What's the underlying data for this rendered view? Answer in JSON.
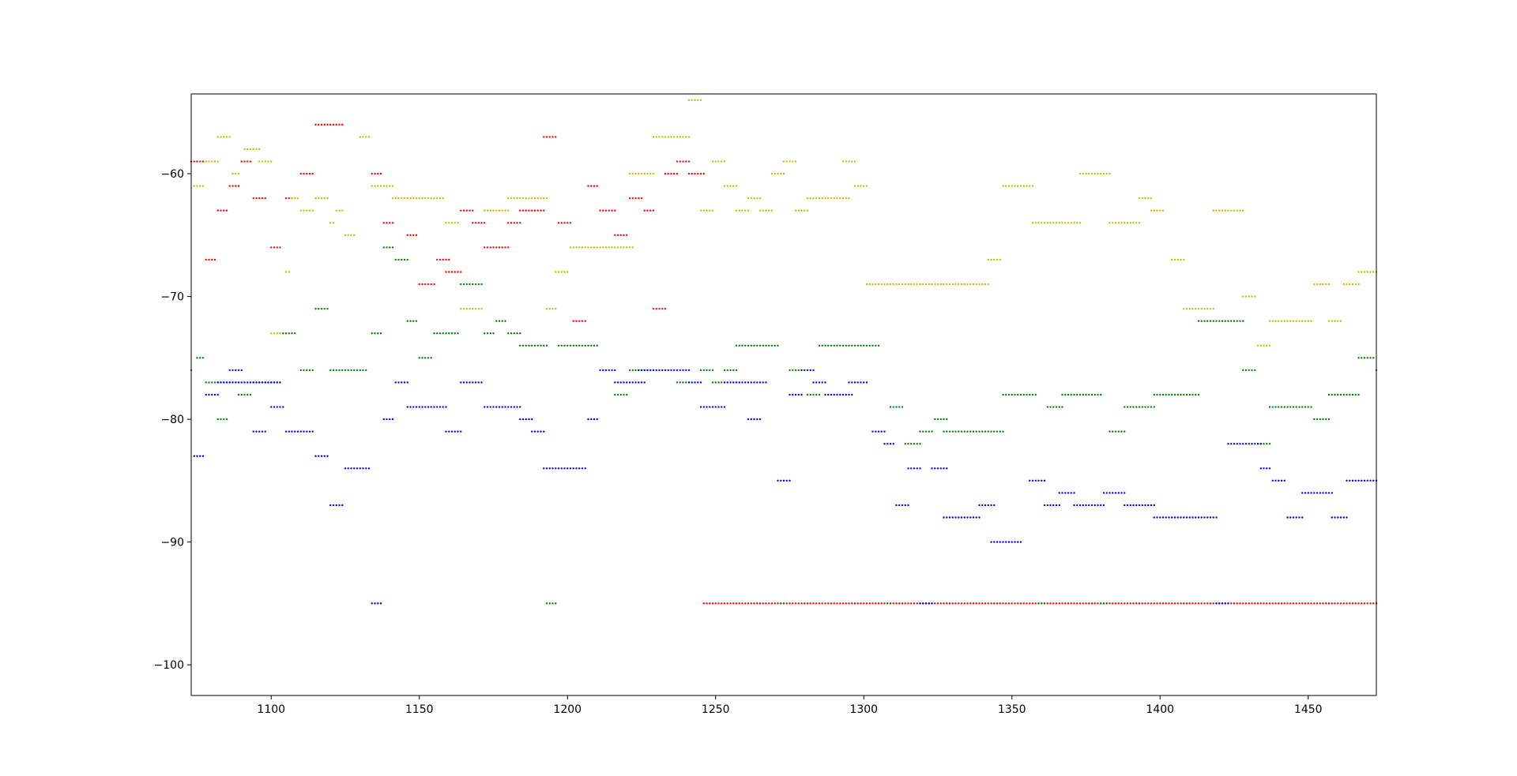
{
  "chart_data": {
    "type": "scatter",
    "title": "",
    "xlabel": "",
    "ylabel": "",
    "xlim": [
      1073,
      1473
    ],
    "ylim": [
      -102.5,
      -53.5
    ],
    "grid": false,
    "legend": "none",
    "x_ticks": [
      1100,
      1150,
      1200,
      1250,
      1300,
      1350,
      1400,
      1450
    ],
    "y_ticks": [
      -60,
      -70,
      -80,
      -90,
      -100
    ],
    "x_tick_labels": [
      "1100",
      "1150",
      "1200",
      "1250",
      "1300",
      "1350",
      "1400",
      "1450"
    ],
    "y_tick_labels": [
      "−60",
      "−70",
      "−80",
      "−90",
      "−100"
    ],
    "series": [
      {
        "color": "#ff0000",
        "segments": [
          [
            1073,
            1075,
            -59
          ],
          [
            1075,
            1077,
            -59
          ],
          [
            1078,
            1081,
            -67
          ],
          [
            1082,
            1085,
            -63
          ],
          [
            1086,
            1089,
            -61
          ],
          [
            1090,
            1093,
            -59
          ],
          [
            1094,
            1098,
            -62
          ],
          [
            1100,
            1103,
            -66
          ],
          [
            1105,
            1107,
            -62
          ],
          [
            1110,
            1114,
            -60
          ],
          [
            1115,
            1124,
            -56
          ],
          [
            1134,
            1137,
            -60
          ],
          [
            1138,
            1141,
            -64
          ],
          [
            1146,
            1149,
            -65
          ],
          [
            1150,
            1155,
            -69
          ],
          [
            1156,
            1160,
            -67
          ],
          [
            1159,
            1164,
            -68
          ],
          [
            1164,
            1168,
            -63
          ],
          [
            1168,
            1172,
            -64
          ],
          [
            1172,
            1180,
            -66
          ],
          [
            1180,
            1184,
            -64
          ],
          [
            1184,
            1192,
            -63
          ],
          [
            1192,
            1196,
            -57
          ],
          [
            1197,
            1201,
            -64
          ],
          [
            1202,
            1206,
            -72
          ],
          [
            1207,
            1210,
            -61
          ],
          [
            1211,
            1216,
            -63
          ],
          [
            1216,
            1220,
            -65
          ],
          [
            1221,
            1225,
            -62
          ],
          [
            1226,
            1229,
            -63
          ],
          [
            1229,
            1233,
            -71
          ],
          [
            1233,
            1237,
            -60
          ],
          [
            1237,
            1241,
            -59
          ],
          [
            1241,
            1246,
            -60
          ],
          [
            1246,
            1473,
            -95
          ]
        ]
      },
      {
        "color": "#bfbf00",
        "segments": [
          [
            1074,
            1077,
            -61
          ],
          [
            1078,
            1082,
            -59
          ],
          [
            1082,
            1086,
            -57
          ],
          [
            1087,
            1089,
            -60
          ],
          [
            1091,
            1096,
            -58
          ],
          [
            1096,
            1100,
            -59
          ],
          [
            1100,
            1104,
            -73
          ],
          [
            1105,
            1106,
            -68
          ],
          [
            1107,
            1109,
            -62
          ],
          [
            1110,
            1114,
            -63
          ],
          [
            1115,
            1119,
            -62
          ],
          [
            1120,
            1121,
            -64
          ],
          [
            1122,
            1124,
            -63
          ],
          [
            1125,
            1128,
            -65
          ],
          [
            1130,
            1133,
            -57
          ],
          [
            1134,
            1141,
            -61
          ],
          [
            1141,
            1146,
            -62
          ],
          [
            1146,
            1158,
            -62
          ],
          [
            1159,
            1163,
            -64
          ],
          [
            1164,
            1171,
            -71
          ],
          [
            1172,
            1180,
            -63
          ],
          [
            1180,
            1193,
            -62
          ],
          [
            1193,
            1196,
            -71
          ],
          [
            1196,
            1200,
            -68
          ],
          [
            1201,
            1222,
            -66
          ],
          [
            1221,
            1229,
            -60
          ],
          [
            1229,
            1241,
            -57
          ],
          [
            1241,
            1245,
            -54
          ],
          [
            1245,
            1249,
            -63
          ],
          [
            1249,
            1253,
            -59
          ],
          [
            1253,
            1257,
            -61
          ],
          [
            1257,
            1261,
            -63
          ],
          [
            1261,
            1265,
            -62
          ],
          [
            1265,
            1269,
            -63
          ],
          [
            1269,
            1273,
            -60
          ],
          [
            1273,
            1277,
            -59
          ],
          [
            1277,
            1281,
            -63
          ],
          [
            1281,
            1295,
            -62
          ],
          [
            1293,
            1297,
            -59
          ],
          [
            1297,
            1301,
            -61
          ],
          [
            1301,
            1342,
            -69
          ],
          [
            1342,
            1346,
            -67
          ],
          [
            1347,
            1357,
            -61
          ],
          [
            1357,
            1373,
            -64
          ],
          [
            1373,
            1383,
            -60
          ],
          [
            1383,
            1393,
            -64
          ],
          [
            1393,
            1397,
            -62
          ],
          [
            1397,
            1401,
            -63
          ],
          [
            1404,
            1408,
            -67
          ],
          [
            1408,
            1418,
            -71
          ],
          [
            1418,
            1428,
            -63
          ],
          [
            1428,
            1432,
            -70
          ],
          [
            1433,
            1437,
            -74
          ],
          [
            1437,
            1451,
            -72
          ],
          [
            1452,
            1457,
            -69
          ],
          [
            1457,
            1461,
            -72
          ],
          [
            1462,
            1467,
            -69
          ],
          [
            1467,
            1473,
            -68
          ]
        ]
      },
      {
        "color": "#008000",
        "segments": [
          [
            1073,
            1073,
            -76
          ],
          [
            1075,
            1077,
            -75
          ],
          [
            1078,
            1089,
            -77
          ],
          [
            1082,
            1085,
            -80
          ],
          [
            1089,
            1093,
            -78
          ],
          [
            1093,
            1103,
            -77
          ],
          [
            1104,
            1108,
            -73
          ],
          [
            1110,
            1114,
            -76
          ],
          [
            1115,
            1119,
            -71
          ],
          [
            1120,
            1132,
            -76
          ],
          [
            1134,
            1137,
            -73
          ],
          [
            1138,
            1141,
            -66
          ],
          [
            1142,
            1146,
            -67
          ],
          [
            1146,
            1149,
            -72
          ],
          [
            1150,
            1154,
            -75
          ],
          [
            1155,
            1163,
            -73
          ],
          [
            1164,
            1171,
            -69
          ],
          [
            1172,
            1175,
            -73
          ],
          [
            1176,
            1179,
            -72
          ],
          [
            1180,
            1184,
            -73
          ],
          [
            1184,
            1193,
            -74
          ],
          [
            1193,
            1196,
            -95
          ],
          [
            1197,
            1210,
            -74
          ],
          [
            1216,
            1220,
            -78
          ],
          [
            1221,
            1229,
            -76
          ],
          [
            1237,
            1241,
            -77
          ],
          [
            1245,
            1249,
            -76
          ],
          [
            1249,
            1253,
            -77
          ],
          [
            1253,
            1257,
            -76
          ],
          [
            1257,
            1271,
            -74
          ],
          [
            1272,
            1273,
            -95
          ],
          [
            1275,
            1279,
            -76
          ],
          [
            1281,
            1285,
            -78
          ],
          [
            1285,
            1305,
            -74
          ],
          [
            1308,
            1309,
            -95
          ],
          [
            1309,
            1313,
            -79
          ],
          [
            1314,
            1319,
            -82
          ],
          [
            1319,
            1323,
            -81
          ],
          [
            1324,
            1328,
            -80
          ],
          [
            1327,
            1347,
            -81
          ],
          [
            1347,
            1358,
            -78
          ],
          [
            1359,
            1361,
            -95
          ],
          [
            1362,
            1367,
            -79
          ],
          [
            1367,
            1380,
            -78
          ],
          [
            1380,
            1382,
            -95
          ],
          [
            1383,
            1388,
            -81
          ],
          [
            1388,
            1398,
            -79
          ],
          [
            1398,
            1413,
            -78
          ],
          [
            1413,
            1428,
            -72
          ],
          [
            1428,
            1432,
            -76
          ],
          [
            1433,
            1437,
            -82
          ],
          [
            1437,
            1451,
            -79
          ],
          [
            1452,
            1457,
            -80
          ],
          [
            1457,
            1467,
            -78
          ],
          [
            1467,
            1472,
            -75
          ],
          [
            1473,
            1473,
            -76
          ]
        ]
      },
      {
        "color": "#0000ff",
        "segments": [
          [
            1074,
            1077,
            -83
          ],
          [
            1078,
            1082,
            -78
          ],
          [
            1082,
            1103,
            -77
          ],
          [
            1086,
            1090,
            -76
          ],
          [
            1094,
            1098,
            -81
          ],
          [
            1100,
            1104,
            -79
          ],
          [
            1105,
            1114,
            -81
          ],
          [
            1115,
            1119,
            -83
          ],
          [
            1120,
            1124,
            -87
          ],
          [
            1125,
            1133,
            -84
          ],
          [
            1134,
            1137,
            -95
          ],
          [
            1138,
            1141,
            -80
          ],
          [
            1142,
            1146,
            -77
          ],
          [
            1146,
            1159,
            -79
          ],
          [
            1159,
            1164,
            -81
          ],
          [
            1164,
            1171,
            -77
          ],
          [
            1172,
            1184,
            -79
          ],
          [
            1184,
            1188,
            -80
          ],
          [
            1188,
            1192,
            -81
          ],
          [
            1192,
            1206,
            -84
          ],
          [
            1207,
            1210,
            -80
          ],
          [
            1211,
            1216,
            -76
          ],
          [
            1216,
            1226,
            -77
          ],
          [
            1224,
            1241,
            -76
          ],
          [
            1241,
            1245,
            -77
          ],
          [
            1245,
            1253,
            -79
          ],
          [
            1253,
            1267,
            -77
          ],
          [
            1261,
            1265,
            -80
          ],
          [
            1271,
            1275,
            -85
          ],
          [
            1275,
            1279,
            -78
          ],
          [
            1279,
            1283,
            -76
          ],
          [
            1283,
            1287,
            -77
          ],
          [
            1287,
            1296,
            -78
          ],
          [
            1295,
            1301,
            -77
          ],
          [
            1303,
            1307,
            -81
          ],
          [
            1307,
            1310,
            -82
          ],
          [
            1311,
            1315,
            -87
          ],
          [
            1315,
            1319,
            -84
          ],
          [
            1319,
            1323,
            -95
          ],
          [
            1323,
            1328,
            -84
          ],
          [
            1327,
            1339,
            -88
          ],
          [
            1339,
            1344,
            -87
          ],
          [
            1343,
            1353,
            -90
          ],
          [
            1356,
            1361,
            -85
          ],
          [
            1361,
            1366,
            -87
          ],
          [
            1366,
            1371,
            -86
          ],
          [
            1371,
            1381,
            -87
          ],
          [
            1381,
            1388,
            -86
          ],
          [
            1388,
            1398,
            -87
          ],
          [
            1398,
            1419,
            -88
          ],
          [
            1419,
            1423,
            -95
          ],
          [
            1423,
            1434,
            -82
          ],
          [
            1434,
            1437,
            -84
          ],
          [
            1438,
            1442,
            -85
          ],
          [
            1443,
            1448,
            -88
          ],
          [
            1448,
            1458,
            -86
          ],
          [
            1458,
            1463,
            -88
          ],
          [
            1463,
            1473,
            -85
          ]
        ]
      }
    ]
  }
}
